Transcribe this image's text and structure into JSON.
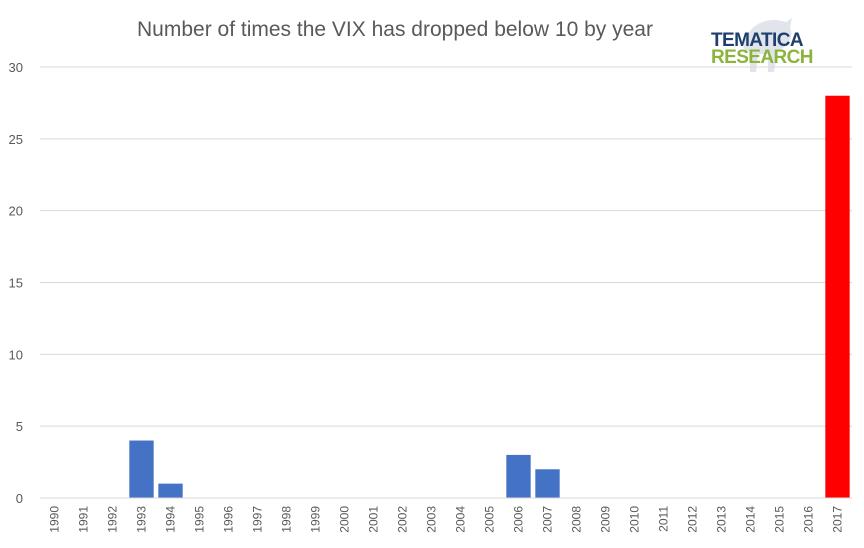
{
  "chart_data": {
    "type": "bar",
    "title": "Number of times the VIX has dropped below 10 by year",
    "xlabel": "",
    "ylabel": "",
    "ylim": [
      0,
      30
    ],
    "yticks": [
      0,
      5,
      10,
      15,
      20,
      25,
      30
    ],
    "grid": true,
    "categories": [
      "1990",
      "1991",
      "1992",
      "1993",
      "1994",
      "1995",
      "1996",
      "1997",
      "1998",
      "1999",
      "2000",
      "2001",
      "2002",
      "2003",
      "2004",
      "2005",
      "2006",
      "2007",
      "2008",
      "2009",
      "2010",
      "2011",
      "2012",
      "2013",
      "2014",
      "2015",
      "2016",
      "2017"
    ],
    "values": [
      0,
      0,
      0,
      4,
      1,
      0,
      0,
      0,
      0,
      0,
      0,
      0,
      0,
      0,
      0,
      0,
      3,
      2,
      0,
      0,
      0,
      0,
      0,
      0,
      0,
      0,
      0,
      28
    ],
    "colors": {
      "default": "#4472c4",
      "highlight": "#ff0000",
      "highlight_category": "2017",
      "grid": "#d9d9d9"
    }
  },
  "logo": {
    "line1": "TEMATICA",
    "line2": "RESEARCH"
  }
}
